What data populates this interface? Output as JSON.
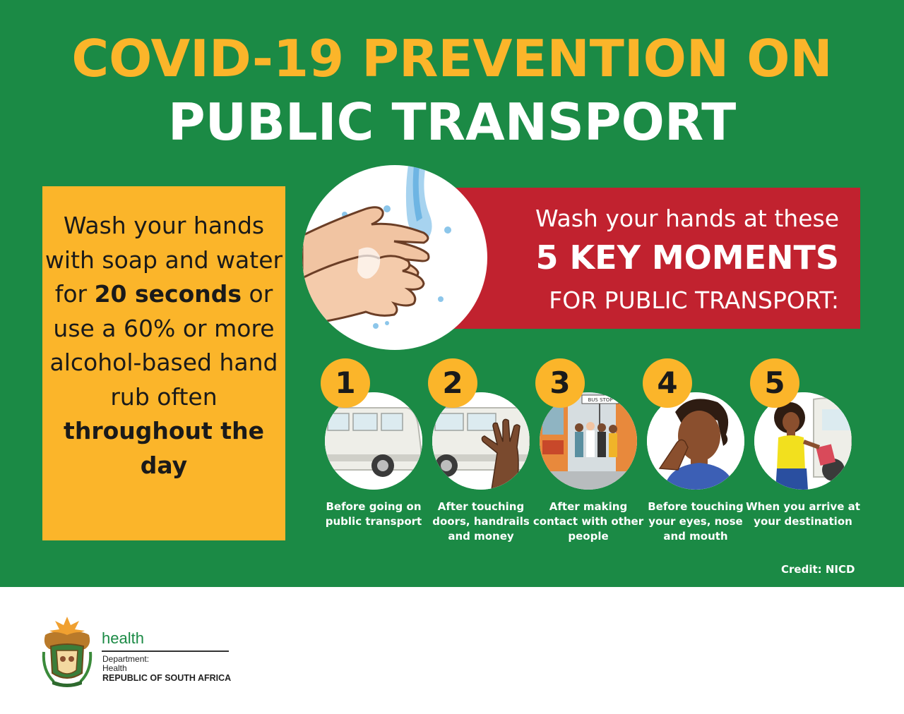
{
  "header": {
    "title_line1": "COVID-19 PREVENTION ON",
    "title_line2": "PUBLIC TRANSPORT"
  },
  "wash_box": {
    "part1": "Wash your hands with soap and water for ",
    "bold1": "20 seconds",
    "part2": " or use a 60% or more alcohol-based hand rub often ",
    "bold2": "throughout the day"
  },
  "moments": {
    "line1": "Wash your hands at these",
    "line2": "5 KEY MOMENTS",
    "line3": "FOR PUBLIC TRANSPORT:"
  },
  "steps": [
    {
      "number": "1",
      "label": "Before going on public transport",
      "icon": "minibus-taxi-icon"
    },
    {
      "number": "2",
      "label": "After touching doors, handrails and money",
      "icon": "hand-on-taxi-icon"
    },
    {
      "number": "3",
      "label": "After making contact with other people",
      "icon": "bus-stop-crowd-icon"
    },
    {
      "number": "4",
      "label": "Before touching your eyes, nose and mouth",
      "icon": "person-touching-face-icon"
    },
    {
      "number": "5",
      "label": "When you arrive at your destination",
      "icon": "woman-arriving-icon"
    }
  ],
  "credit": "Credit: NICD",
  "footer": {
    "health": "health",
    "dept_line1": "Department:",
    "dept_line2": "Health",
    "country": "REPUBLIC OF SOUTH AFRICA"
  },
  "colors": {
    "green": "#1b8a45",
    "yellow": "#fbb52a",
    "red": "#c1222f",
    "white": "#ffffff"
  }
}
